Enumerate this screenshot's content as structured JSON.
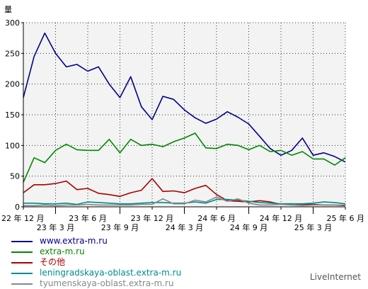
{
  "brand": "LiveInternet",
  "chart_data": {
    "type": "line",
    "ylabel": "量",
    "ylim": [
      0,
      300
    ],
    "yticks": [
      0,
      50,
      100,
      150,
      200,
      250,
      300
    ],
    "xlim": [
      0,
      30
    ],
    "xticks": [
      {
        "label": "22 年 12 月",
        "x": 0,
        "row": 0
      },
      {
        "label": "23 年 3 月",
        "x": 3,
        "row": 1
      },
      {
        "label": "23 年 6 月",
        "x": 6,
        "row": 0
      },
      {
        "label": "23 年 9 月",
        "x": 9,
        "row": 1
      },
      {
        "label": "23 年 12 月",
        "x": 12,
        "row": 0
      },
      {
        "label": "24 年 3 月",
        "x": 15,
        "row": 1
      },
      {
        "label": "24 年 6 月",
        "x": 18,
        "row": 0
      },
      {
        "label": "24 年 9 月",
        "x": 21,
        "row": 1
      },
      {
        "label": "24 年 12 月",
        "x": 24,
        "row": 0
      },
      {
        "label": "25 年 3 月",
        "x": 27,
        "row": 1
      },
      {
        "label": "25 年 6 月",
        "x": 30,
        "row": 0
      }
    ],
    "grid": true,
    "legend_position": "bottom-left",
    "series": [
      {
        "name": "www.extra-m.ru",
        "color": "#00008b",
        "values": [
          178,
          245,
          283,
          250,
          228,
          232,
          221,
          228,
          200,
          178,
          212,
          163,
          142,
          180,
          175,
          158,
          145,
          136,
          143,
          155,
          146,
          135,
          115,
          95,
          84,
          92,
          112,
          84,
          88,
          82,
          73
        ]
      },
      {
        "name": "extra-m.ru",
        "color": "#008800",
        "values": [
          40,
          80,
          72,
          92,
          102,
          93,
          92,
          92,
          110,
          88,
          110,
          100,
          102,
          98,
          106,
          112,
          120,
          96,
          95,
          102,
          100,
          93,
          100,
          90,
          92,
          84,
          90,
          78,
          78,
          68,
          80
        ]
      },
      {
        "name": "その他",
        "color": "#aa0000",
        "values": [
          23,
          36,
          36,
          38,
          42,
          28,
          30,
          22,
          20,
          17,
          23,
          27,
          46,
          25,
          26,
          23,
          30,
          35,
          20,
          10,
          9,
          8,
          10,
          8,
          4,
          5,
          4,
          4,
          3,
          3,
          2
        ]
      },
      {
        "name": "leningradskaya-oblast.extra-m.ru",
        "color": "#008b8b",
        "values": [
          6,
          6,
          5,
          5,
          6,
          4,
          8,
          7,
          6,
          5,
          5,
          6,
          7,
          7,
          6,
          6,
          8,
          6,
          12,
          12,
          11,
          9,
          7,
          6,
          5,
          5,
          5,
          6,
          8,
          7,
          5
        ]
      },
      {
        "name": "tyumenskaya-oblast.extra-m.ru",
        "color": "#888888",
        "values": [
          2,
          2,
          3,
          2,
          3,
          3,
          4,
          3,
          3,
          3,
          3,
          4,
          4,
          13,
          5,
          5,
          11,
          8,
          16,
          9,
          13,
          6,
          3,
          3,
          4,
          3,
          2,
          3,
          3,
          3,
          3
        ]
      }
    ]
  }
}
